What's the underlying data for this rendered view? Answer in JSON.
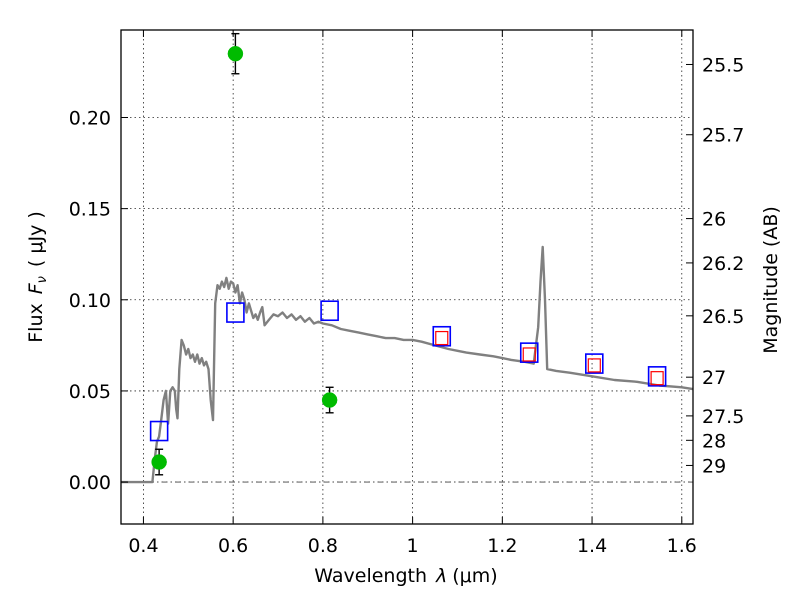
{
  "chart_data": {
    "type": "scatter",
    "xlabel": "Wavelength",
    "xlabel_symbol": "λ",
    "xlabel_unit": "(μm)",
    "ylabel": "Flux",
    "ylabel_symbol": "F",
    "ylabel_subscript": "ν",
    "ylabel_unit": "( μJy )",
    "y2label": "Magnitude (AB)",
    "xlim": [
      0.35,
      1.625
    ],
    "ylim": [
      -0.023,
      0.248
    ],
    "grid": true,
    "x_ticks": [
      {
        "value": 0.4,
        "label": "0.4"
      },
      {
        "value": 0.6,
        "label": "0.6"
      },
      {
        "value": 0.8,
        "label": "0.8"
      },
      {
        "value": 1.0,
        "label": "1"
      },
      {
        "value": 1.2,
        "label": "1.2"
      },
      {
        "value": 1.4,
        "label": "1.4"
      },
      {
        "value": 1.6,
        "label": "1.6"
      }
    ],
    "y_ticks": [
      {
        "value": 0.0,
        "label": "0.00"
      },
      {
        "value": 0.05,
        "label": "0.05"
      },
      {
        "value": 0.1,
        "label": "0.10"
      },
      {
        "value": 0.15,
        "label": "0.15"
      },
      {
        "value": 0.2,
        "label": "0.20"
      }
    ],
    "magnitude_ticks": [
      {
        "value": 25.5,
        "label": "25.5"
      },
      {
        "value": 25.7,
        "label": "25.7"
      },
      {
        "value": 26.0,
        "label": "26"
      },
      {
        "value": 26.2,
        "label": "26.2"
      },
      {
        "value": 26.5,
        "label": "26.5"
      },
      {
        "value": 27.0,
        "label": "27"
      },
      {
        "value": 27.5,
        "label": "27.5"
      },
      {
        "value": 28.0,
        "label": "28"
      },
      {
        "value": 29.0,
        "label": "29"
      }
    ],
    "series": [
      {
        "kind": "line",
        "color": "#808080",
        "x": [
          0.35,
          0.42,
          0.425,
          0.43,
          0.435,
          0.44,
          0.445,
          0.45,
          0.455,
          0.46,
          0.465,
          0.47,
          0.473,
          0.476,
          0.48,
          0.485,
          0.49,
          0.495,
          0.5,
          0.505,
          0.51,
          0.515,
          0.52,
          0.525,
          0.53,
          0.535,
          0.54,
          0.545,
          0.55,
          0.555,
          0.56,
          0.565,
          0.57,
          0.575,
          0.58,
          0.585,
          0.59,
          0.595,
          0.6,
          0.605,
          0.61,
          0.615,
          0.62,
          0.625,
          0.63,
          0.635,
          0.64,
          0.645,
          0.65,
          0.655,
          0.66,
          0.665,
          0.67,
          0.68,
          0.69,
          0.7,
          0.71,
          0.72,
          0.73,
          0.74,
          0.75,
          0.76,
          0.77,
          0.78,
          0.79,
          0.8,
          0.82,
          0.84,
          0.86,
          0.88,
          0.9,
          0.92,
          0.94,
          0.96,
          0.98,
          1.0,
          1.02,
          1.05,
          1.08,
          1.1,
          1.12,
          1.15,
          1.18,
          1.2,
          1.22,
          1.25,
          1.27,
          1.28,
          1.285,
          1.29,
          1.295,
          1.3,
          1.32,
          1.35,
          1.4,
          1.45,
          1.5,
          1.55,
          1.6,
          1.625
        ],
        "values": [
          0.0,
          0.0,
          0.012,
          0.022,
          0.025,
          0.035,
          0.045,
          0.05,
          0.032,
          0.05,
          0.052,
          0.05,
          0.04,
          0.035,
          0.062,
          0.078,
          0.075,
          0.07,
          0.073,
          0.068,
          0.07,
          0.066,
          0.07,
          0.065,
          0.068,
          0.064,
          0.066,
          0.062,
          0.045,
          0.034,
          0.098,
          0.108,
          0.106,
          0.11,
          0.107,
          0.112,
          0.106,
          0.11,
          0.109,
          0.104,
          0.108,
          0.098,
          0.104,
          0.1,
          0.093,
          0.098,
          0.094,
          0.09,
          0.092,
          0.089,
          0.093,
          0.096,
          0.086,
          0.089,
          0.092,
          0.091,
          0.093,
          0.09,
          0.092,
          0.089,
          0.091,
          0.088,
          0.09,
          0.087,
          0.088,
          0.087,
          0.086,
          0.084,
          0.083,
          0.082,
          0.081,
          0.08,
          0.079,
          0.079,
          0.078,
          0.078,
          0.077,
          0.075,
          0.073,
          0.072,
          0.071,
          0.07,
          0.069,
          0.068,
          0.067,
          0.066,
          0.065,
          0.085,
          0.11,
          0.129,
          0.1,
          0.062,
          0.061,
          0.06,
          0.058,
          0.056,
          0.055,
          0.053,
          0.052,
          0.051
        ]
      },
      {
        "kind": "open-square",
        "color": "#0000ff",
        "x": [
          0.435,
          0.605,
          0.815,
          1.065,
          1.26,
          1.405,
          1.545
        ],
        "values": [
          0.028,
          0.093,
          0.094,
          0.08,
          0.071,
          0.065,
          0.058
        ]
      },
      {
        "kind": "open-square-small",
        "color": "#ff0000",
        "x": [
          1.065,
          1.26,
          1.405,
          1.545
        ],
        "values": [
          0.079,
          0.07,
          0.064,
          0.057
        ]
      },
      {
        "kind": "point-with-error",
        "color": "#00bb00",
        "x": [
          0.435,
          0.605,
          0.815
        ],
        "values": [
          0.011,
          0.235,
          0.045
        ],
        "errors": [
          0.007,
          0.011,
          0.007
        ]
      }
    ]
  }
}
